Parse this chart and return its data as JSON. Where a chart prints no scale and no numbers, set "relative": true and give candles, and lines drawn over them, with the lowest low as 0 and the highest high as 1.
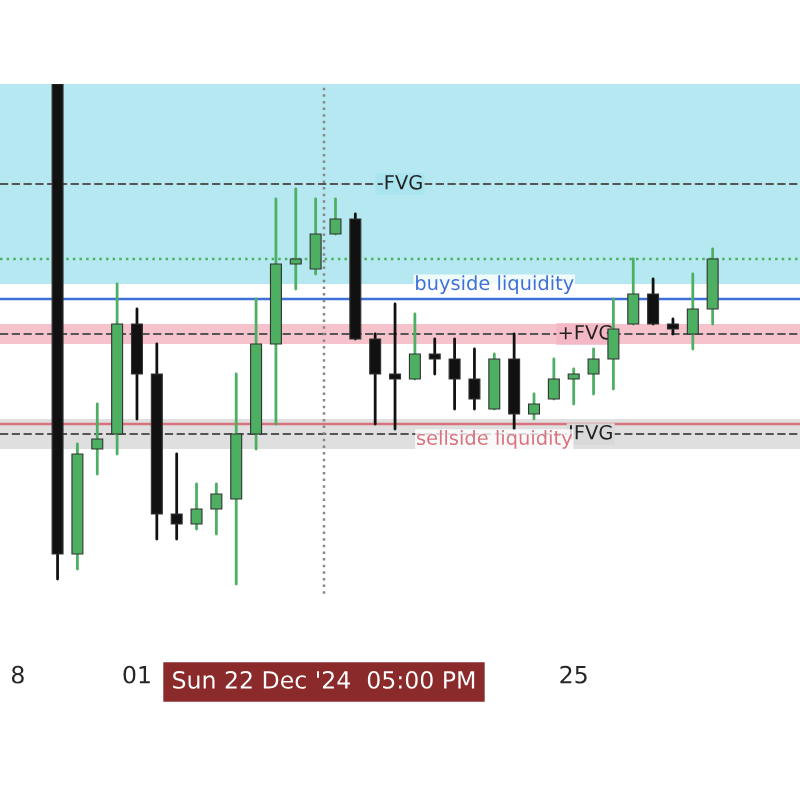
{
  "chart_data": {
    "type": "candlestick",
    "relative": true,
    "categories": [
      "8",
      null,
      null,
      null,
      null,
      null,
      "01",
      null,
      null,
      null,
      null,
      null,
      null,
      null,
      null,
      null,
      null,
      null,
      null,
      null,
      null,
      null,
      null,
      null,
      null,
      null,
      null,
      null,
      "25",
      null,
      null,
      null,
      null,
      null,
      null,
      null
    ],
    "annotations": [
      "Sun 22 Dec '24  05:00 PM"
    ],
    "ohlc": [
      null,
      null,
      [
        1.0,
        1.0,
        0.01,
        0.06
      ],
      [
        0.06,
        0.28,
        0.03,
        0.26
      ],
      [
        0.27,
        0.36,
        0.22,
        0.29
      ],
      [
        0.3,
        0.6,
        0.26,
        0.52
      ],
      [
        0.52,
        0.55,
        0.33,
        0.42
      ],
      [
        0.42,
        0.48,
        0.09,
        0.14
      ],
      [
        0.14,
        0.26,
        0.09,
        0.12
      ],
      [
        0.12,
        0.2,
        0.11,
        0.15
      ],
      [
        0.15,
        0.2,
        0.1,
        0.18
      ],
      [
        0.17,
        0.42,
        0.0,
        0.3
      ],
      [
        0.3,
        0.57,
        0.27,
        0.48
      ],
      [
        0.48,
        0.77,
        0.32,
        0.64
      ],
      [
        0.64,
        0.79,
        0.59,
        0.65
      ],
      [
        0.63,
        0.77,
        0.62,
        0.7
      ],
      [
        0.7,
        0.77,
        0.7,
        0.73
      ],
      [
        0.73,
        0.74,
        0.49,
        0.49
      ],
      [
        0.49,
        0.5,
        0.32,
        0.42
      ],
      [
        0.42,
        0.56,
        0.31,
        0.41
      ],
      [
        0.41,
        0.54,
        0.41,
        0.46
      ],
      [
        0.46,
        0.49,
        0.42,
        0.45
      ],
      [
        0.45,
        0.49,
        0.35,
        0.41
      ],
      [
        0.41,
        0.47,
        0.35,
        0.37
      ],
      [
        0.35,
        0.46,
        0.35,
        0.45
      ],
      [
        0.45,
        0.5,
        0.31,
        0.34
      ],
      [
        0.34,
        0.38,
        0.33,
        0.36
      ],
      [
        0.37,
        0.45,
        0.37,
        0.41
      ],
      [
        0.41,
        0.43,
        0.36,
        0.42
      ],
      [
        0.42,
        0.47,
        0.38,
        0.45
      ],
      [
        0.45,
        0.57,
        0.39,
        0.51
      ],
      [
        0.52,
        0.65,
        0.52,
        0.58
      ],
      [
        0.58,
        0.61,
        0.52,
        0.52
      ],
      [
        0.52,
        0.53,
        0.5,
        0.51
      ],
      [
        0.5,
        0.62,
        0.47,
        0.55
      ],
      [
        0.55,
        0.67,
        0.52,
        0.65
      ]
    ],
    "colors": [
      null,
      null,
      "#111111",
      "#4caf62",
      "#4caf62",
      "#4caf62",
      "#111111",
      "#111111",
      "#111111",
      "#4caf62",
      "#4caf62",
      "#4caf62",
      "#4caf62",
      "#4caf62",
      "#4caf62",
      "#4caf62",
      "#4caf62",
      "#111111",
      "#111111",
      "#111111",
      "#4caf62",
      "#111111",
      "#111111",
      "#111111",
      "#4caf62",
      "#111111",
      "#4caf62",
      "#4caf62",
      "#4caf62",
      "#4caf62",
      "#4caf62",
      "#4caf62",
      "#111111",
      "#111111",
      "#4caf62",
      "#4caf62"
    ],
    "bands": [
      {
        "axis": "y",
        "from": 0.6,
        "to": 1.0,
        "label": "-FVG",
        "color": "#a9e4ef"
      },
      {
        "axis": "y",
        "from": 0.27,
        "to": 0.33,
        "label": "IFVG",
        "color": "#d9d9d9"
      },
      {
        "axis": "y",
        "from": 0.48,
        "to": 0.52,
        "label": "+FVG",
        "color": "#f4b8c4"
      }
    ],
    "ref_lines": [
      {
        "axis": "y",
        "value": 0.57,
        "label": "buyside liquidity",
        "color": "#3f6fd8",
        "line_style": "solid"
      },
      {
        "axis": "y",
        "value": 0.32,
        "label": "sellside liquidity",
        "color": "#d9727f",
        "line_style": "solid"
      },
      {
        "axis": "y",
        "value": 0.65,
        "label": null,
        "color": "#4caf62",
        "line_style": "dotted"
      }
    ],
    "grid": false
  }
}
